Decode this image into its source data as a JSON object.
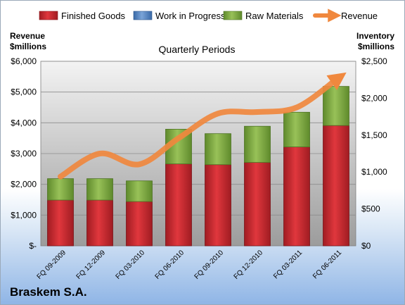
{
  "company": "Braskem S.A.",
  "chart_data": {
    "type": "bar",
    "stacked": true,
    "subtitle": "Quarterly Periods",
    "categories": [
      "FQ 09-2009",
      "FQ 12-2009",
      "FQ 03-2010",
      "FQ 06-2010",
      "FQ 09-2010",
      "FQ 12-2010",
      "FQ 03-2011",
      "FQ 06-2011"
    ],
    "series": [
      {
        "name": "Finished Goods",
        "color": "#c0272d",
        "axis": "right",
        "values": [
          620,
          620,
          600,
          1110,
          1100,
          1130,
          1340,
          1630
        ]
      },
      {
        "name": "Work in Progress",
        "color": "#4f81bd",
        "axis": "right",
        "values": [
          0,
          0,
          0,
          0,
          0,
          0,
          0,
          0
        ]
      },
      {
        "name": "Raw Materials",
        "color": "#77a03b",
        "axis": "right",
        "values": [
          290,
          290,
          280,
          470,
          420,
          490,
          470,
          530
        ]
      }
    ],
    "line_series": {
      "name": "Revenue",
      "color": "#f0883e",
      "axis": "left",
      "values": [
        2250,
        3000,
        2650,
        3500,
        4300,
        4350,
        4500,
        5400
      ]
    },
    "left_axis": {
      "title_line1": "Revenue",
      "title_line2": "$millions",
      "min": 0,
      "max": 6000,
      "step": 1000,
      "tick_labels": [
        "$-",
        "$1,000",
        "$2,000",
        "$3,000",
        "$4,000",
        "$5,000",
        "$6,000"
      ]
    },
    "right_axis": {
      "title_line1": "Inventory",
      "title_line2": "$millions",
      "min": 0,
      "max": 2500,
      "step": 500,
      "tick_labels": [
        "$0",
        "$500",
        "$1,000",
        "$1,500",
        "$2,000",
        "$2,500"
      ]
    },
    "grid": true,
    "legend_position": "top"
  }
}
